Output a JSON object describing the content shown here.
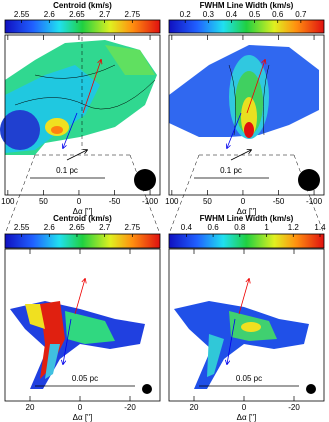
{
  "panels": [
    {
      "colorbar": {
        "title": "Centroid (km/s)",
        "lim": [
          2.52,
          2.8
        ],
        "ticks": [
          2.55,
          2.6,
          2.65,
          2.7,
          2.75
        ]
      },
      "xaxis": {
        "label": "Δα ['']",
        "lim": [
          104,
          -114
        ],
        "ticks": [
          100,
          50,
          0,
          -50,
          -100
        ]
      },
      "scale_bar": "0.1 pc"
    },
    {
      "colorbar": {
        "title": "FWHM Line Width (km/s)",
        "lim": [
          0.13,
          0.8
        ],
        "ticks": [
          0.2,
          0.3,
          0.4,
          0.5,
          0.6,
          0.7
        ]
      },
      "xaxis": {
        "label": "Δα ['']",
        "lim": [
          104,
          -114
        ],
        "ticks": [
          100,
          50,
          0,
          -50,
          -100
        ]
      },
      "scale_bar": "0.1 pc"
    },
    {
      "colorbar": {
        "title": "Centroid (km/s)",
        "lim": [
          2.52,
          2.8
        ],
        "ticks": [
          2.55,
          2.6,
          2.65,
          2.7,
          2.75
        ]
      },
      "xaxis": {
        "label": "Δα ['']",
        "lim": [
          30,
          -32
        ],
        "ticks": [
          20,
          0,
          -20
        ]
      },
      "scale_bar": "0.05 pc"
    },
    {
      "colorbar": {
        "title": "FWHM Line Width (km/s)",
        "lim": [
          0.27,
          1.43
        ],
        "ticks": [
          0.4,
          0.6,
          0.8,
          1,
          1.2,
          1.4
        ]
      },
      "xaxis": {
        "label": "Δα ['']",
        "lim": [
          30,
          -32
        ],
        "ticks": [
          20,
          0,
          -20
        ]
      },
      "scale_bar": "0.05 pc"
    }
  ]
}
